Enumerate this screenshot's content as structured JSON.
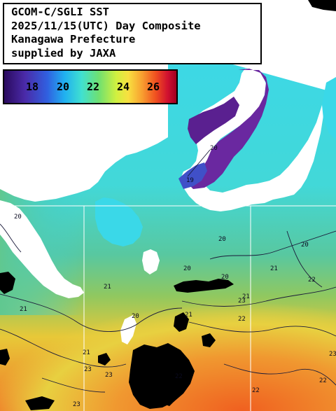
{
  "title": {
    "line1": "GCOM-C/SGLI SST",
    "line2": "2025/11/15(UTC) Day Composite",
    "line3": "Kanagawa Prefecture",
    "line4": "supplied by JAXA"
  },
  "colorbar": {
    "ticks": [
      "18",
      "20",
      "22",
      "24",
      "26"
    ],
    "colors": [
      "#2a0a5e",
      "#4a2aa8",
      "#3060e0",
      "#20b0f0",
      "#40e0d0",
      "#60e080",
      "#c8f040",
      "#f8e040",
      "#f8a030",
      "#f05020",
      "#d01030",
      "#a00020"
    ]
  },
  "contour_labels": [
    "20",
    "21",
    "22",
    "23",
    "21",
    "20",
    "20",
    "21",
    "23",
    "20",
    "21",
    "22",
    "23",
    "21",
    "19",
    "20",
    "20",
    "21",
    "20",
    "22",
    "23",
    "22",
    "23",
    "22"
  ],
  "grid": {
    "color": "#ffffff"
  },
  "colors": {
    "land": "#ffffff",
    "bay_water": "#6a28a0",
    "sea_cyan": "#3ad8e8",
    "sea_green": "#58c898",
    "sea_yellow": "#f0c838",
    "sea_orange": "#f07830",
    "cloud": "#000000"
  }
}
